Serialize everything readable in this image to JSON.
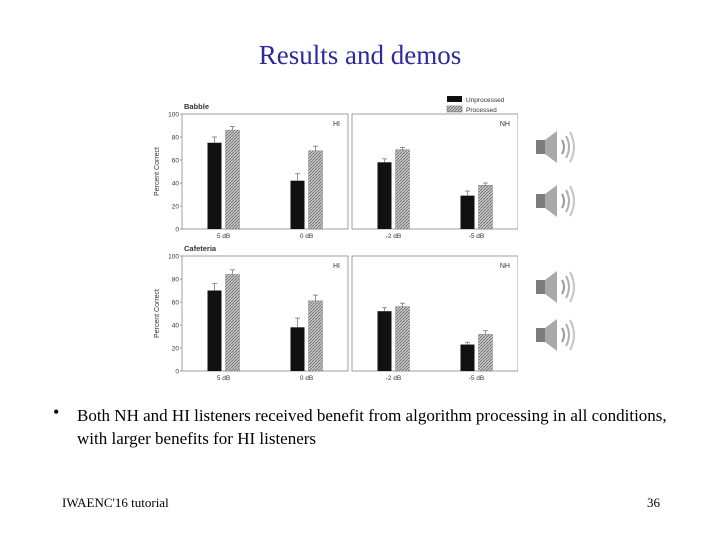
{
  "slide": {
    "title": "Results and demos",
    "bullet": "Both NH and HI listeners received benefit from algorithm processing in all conditions, with larger benefits for HI listeners",
    "footer_left": "IWAENC'16 tutorial",
    "page_number": "36"
  },
  "colors": {
    "title": "#2b2b9a",
    "unprocessed": "#111111",
    "processed_hatch": "#9a9a9a",
    "panel_bg": "#ffffff",
    "panel_border": "#777777"
  },
  "chart_data": {
    "type": "bar",
    "ylabel": "Percent Correct",
    "ylim": [
      0,
      100
    ],
    "yticks": [
      "0",
      "20",
      "40",
      "60",
      "80",
      "100"
    ],
    "legend": [
      "Unprocessed",
      "Processed"
    ],
    "legend_placement": "top-right",
    "rows": [
      {
        "label": "Babble",
        "panels": [
          {
            "group": "HI",
            "categories": [
              "5 dB",
              "0 dB"
            ],
            "series": [
              {
                "name": "Unprocessed",
                "values": [
                  75,
                  42
                ],
                "err": [
                  5,
                  6
                ]
              },
              {
                "name": "Processed",
                "values": [
                  86,
                  68
                ],
                "err": [
                  3,
                  4
                ]
              }
            ]
          },
          {
            "group": "NH",
            "categories": [
              "-2 dB",
              "-5 dB"
            ],
            "series": [
              {
                "name": "Unprocessed",
                "values": [
                  58,
                  29
                ],
                "err": [
                  3,
                  4
                ]
              },
              {
                "name": "Processed",
                "values": [
                  69,
                  38
                ],
                "err": [
                  2,
                  2
                ]
              }
            ]
          }
        ]
      },
      {
        "label": "Cafeteria",
        "panels": [
          {
            "group": "HI",
            "categories": [
              "5 dB",
              "0 dB"
            ],
            "series": [
              {
                "name": "Unprocessed",
                "values": [
                  70,
                  38
                ],
                "err": [
                  6,
                  8
                ]
              },
              {
                "name": "Processed",
                "values": [
                  84,
                  61
                ],
                "err": [
                  4,
                  5
                ]
              }
            ]
          },
          {
            "group": "NH",
            "categories": [
              "-2 dB",
              "-5 dB"
            ],
            "series": [
              {
                "name": "Unprocessed",
                "values": [
                  52,
                  23
                ],
                "err": [
                  3,
                  2
                ]
              },
              {
                "name": "Processed",
                "values": [
                  56,
                  32
                ],
                "err": [
                  3,
                  3
                ]
              }
            ]
          }
        ]
      }
    ]
  },
  "speakers": [
    {
      "name": "speaker-icon-1"
    },
    {
      "name": "speaker-icon-2"
    },
    {
      "name": "speaker-icon-3"
    },
    {
      "name": "speaker-icon-4"
    }
  ]
}
